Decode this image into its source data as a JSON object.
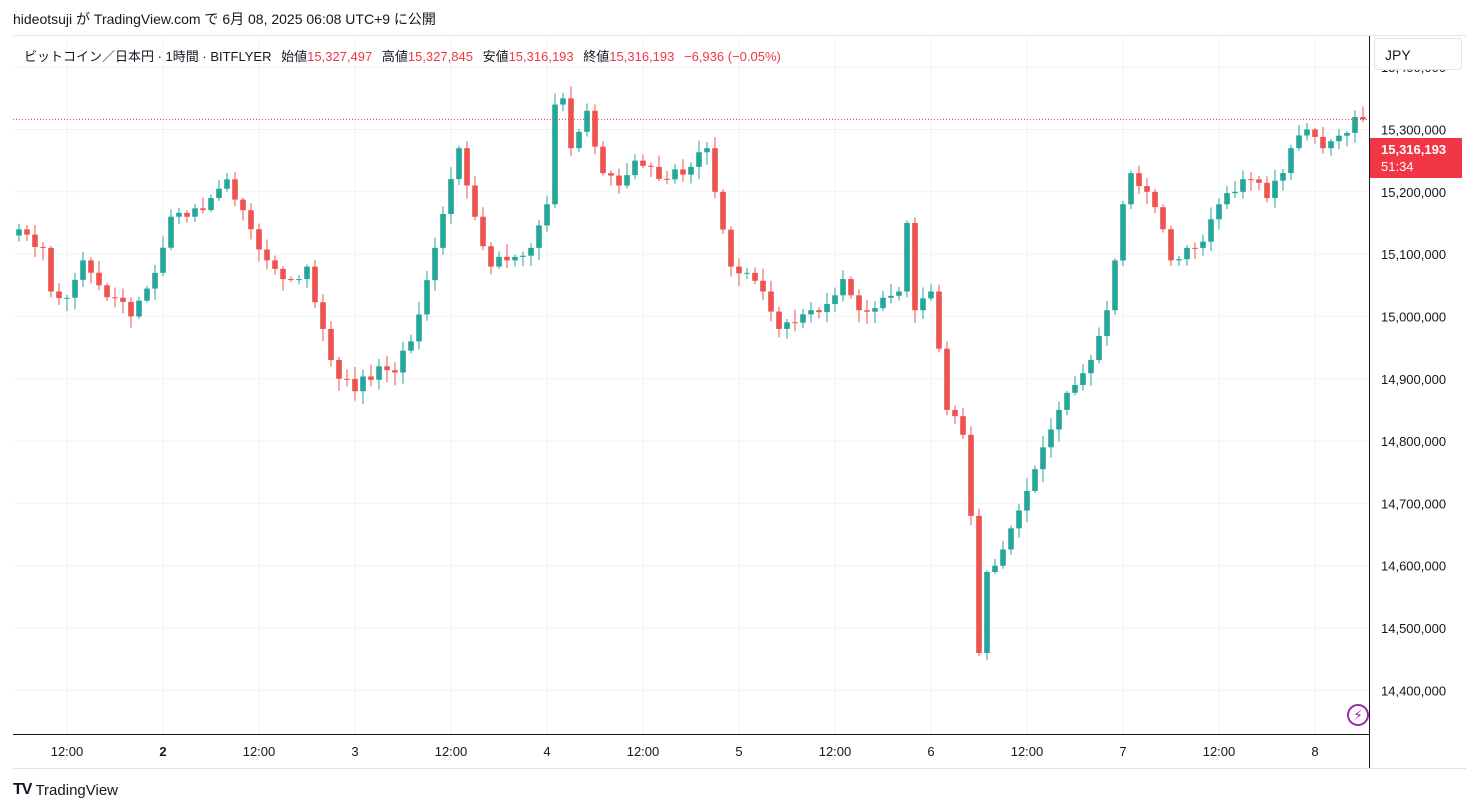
{
  "caption": "hideotsuji が TradingView.com で 6月 08, 2025 06:08 UTC+9 に公開",
  "legend": {
    "symbol": "ビットコイン／日本円 · 1時間 · BITFLYER",
    "open_label": "始値",
    "open": "15,327,497",
    "high_label": "高値",
    "high": "15,327,845",
    "low_label": "安値",
    "low": "15,316,193",
    "close_label": "終値",
    "close": "15,316,193",
    "change": "−6,936 (−0.05%)"
  },
  "currency": "JPY",
  "last_price": {
    "price": "15,316,193",
    "countdown": "51:34"
  },
  "brand": {
    "name": "TradingView"
  },
  "colors": {
    "up": "#26a69a",
    "down": "#ef5350",
    "grid": "#f0f3fa",
    "price_line": "#f23645"
  },
  "icons": {
    "logo": "tradingview-logo-icon",
    "alert": "lightning-icon"
  },
  "chart_data": {
    "type": "candlestick",
    "interval": "1 hour",
    "y_range": [
      14330000,
      15450000
    ],
    "y_ticks": [
      {
        "v": 15400000,
        "label": "15,400,000"
      },
      {
        "v": 15300000,
        "label": "15,300,000"
      },
      {
        "v": 15200000,
        "label": "15,200,000"
      },
      {
        "v": 15100000,
        "label": "15,100,000"
      },
      {
        "v": 15000000,
        "label": "15,000,000"
      },
      {
        "v": 14900000,
        "label": "14,900,000"
      },
      {
        "v": 14800000,
        "label": "14,800,000"
      },
      {
        "v": 14700000,
        "label": "14,700,000"
      },
      {
        "v": 14600000,
        "label": "14,600,000"
      },
      {
        "v": 14500000,
        "label": "14,500,000"
      },
      {
        "v": 14400000,
        "label": "14,400,000"
      }
    ],
    "x_ticks": [
      {
        "i": 6,
        "label": "12:00",
        "bold": false
      },
      {
        "i": 18,
        "label": "2",
        "bold": true
      },
      {
        "i": 30,
        "label": "12:00",
        "bold": false
      },
      {
        "i": 42,
        "label": "3",
        "bold": false
      },
      {
        "i": 54,
        "label": "12:00",
        "bold": false
      },
      {
        "i": 66,
        "label": "4",
        "bold": false
      },
      {
        "i": 78,
        "label": "12:00",
        "bold": false
      },
      {
        "i": 90,
        "label": "5",
        "bold": false
      },
      {
        "i": 102,
        "label": "12:00",
        "bold": false
      },
      {
        "i": 114,
        "label": "6",
        "bold": false
      },
      {
        "i": 126,
        "label": "12:00",
        "bold": false
      },
      {
        "i": 138,
        "label": "7",
        "bold": false
      },
      {
        "i": 150,
        "label": "12:00",
        "bold": false
      },
      {
        "i": 162,
        "label": "8",
        "bold": false
      }
    ],
    "last_close": 15316193,
    "anchors": [
      [
        0,
        15140000
      ],
      [
        3,
        15110000
      ],
      [
        4,
        15040000
      ],
      [
        6,
        15030000
      ],
      [
        8,
        15090000
      ],
      [
        10,
        15050000
      ],
      [
        12,
        15030000
      ],
      [
        14,
        15000000
      ],
      [
        17,
        15070000
      ],
      [
        19,
        15160000
      ],
      [
        21,
        15160000
      ],
      [
        24,
        15190000
      ],
      [
        26,
        15220000
      ],
      [
        29,
        15140000
      ],
      [
        31,
        15090000
      ],
      [
        33,
        15060000
      ],
      [
        35,
        15060000
      ],
      [
        36,
        15080000
      ],
      [
        38,
        14980000
      ],
      [
        40,
        14900000
      ],
      [
        42,
        14880000
      ],
      [
        45,
        14920000
      ],
      [
        47,
        14910000
      ],
      [
        49,
        14960000
      ],
      [
        52,
        15110000
      ],
      [
        55,
        15270000
      ],
      [
        57,
        15160000
      ],
      [
        59,
        15080000
      ],
      [
        61,
        15090000
      ],
      [
        64,
        15110000
      ],
      [
        66,
        15180000
      ],
      [
        67,
        15340000
      ],
      [
        68,
        15350000
      ],
      [
        69,
        15270000
      ],
      [
        71,
        15330000
      ],
      [
        73,
        15230000
      ],
      [
        75,
        15210000
      ],
      [
        77,
        15250000
      ],
      [
        79,
        15240000
      ],
      [
        81,
        15220000
      ],
      [
        84,
        15240000
      ],
      [
        86,
        15270000
      ],
      [
        87,
        15200000
      ],
      [
        89,
        15080000
      ],
      [
        91,
        15070000
      ],
      [
        93,
        15040000
      ],
      [
        95,
        14980000
      ],
      [
        97,
        14990000
      ],
      [
        99,
        15010000
      ],
      [
        101,
        15020000
      ],
      [
        103,
        15060000
      ],
      [
        105,
        15010000
      ],
      [
        108,
        15030000
      ],
      [
        110,
        15040000
      ],
      [
        111,
        15150000
      ],
      [
        112,
        15010000
      ],
      [
        114,
        15040000
      ],
      [
        116,
        14850000
      ],
      [
        118,
        14810000
      ],
      [
        119,
        14680000
      ],
      [
        120,
        14460000
      ],
      [
        121,
        14590000
      ],
      [
        122,
        14600000
      ],
      [
        124,
        14660000
      ],
      [
        126,
        14720000
      ],
      [
        128,
        14790000
      ],
      [
        130,
        14850000
      ],
      [
        132,
        14890000
      ],
      [
        134,
        14930000
      ],
      [
        136,
        15010000
      ],
      [
        138,
        15180000
      ],
      [
        139,
        15230000
      ],
      [
        141,
        15200000
      ],
      [
        143,
        15140000
      ],
      [
        144,
        15090000
      ],
      [
        146,
        15110000
      ],
      [
        148,
        15120000
      ],
      [
        150,
        15180000
      ],
      [
        152,
        15200000
      ],
      [
        154,
        15220000
      ],
      [
        156,
        15190000
      ],
      [
        158,
        15230000
      ],
      [
        159,
        15270000
      ],
      [
        161,
        15300000
      ],
      [
        163,
        15270000
      ],
      [
        165,
        15290000
      ],
      [
        167,
        15320000
      ],
      [
        168,
        15316193
      ]
    ]
  }
}
